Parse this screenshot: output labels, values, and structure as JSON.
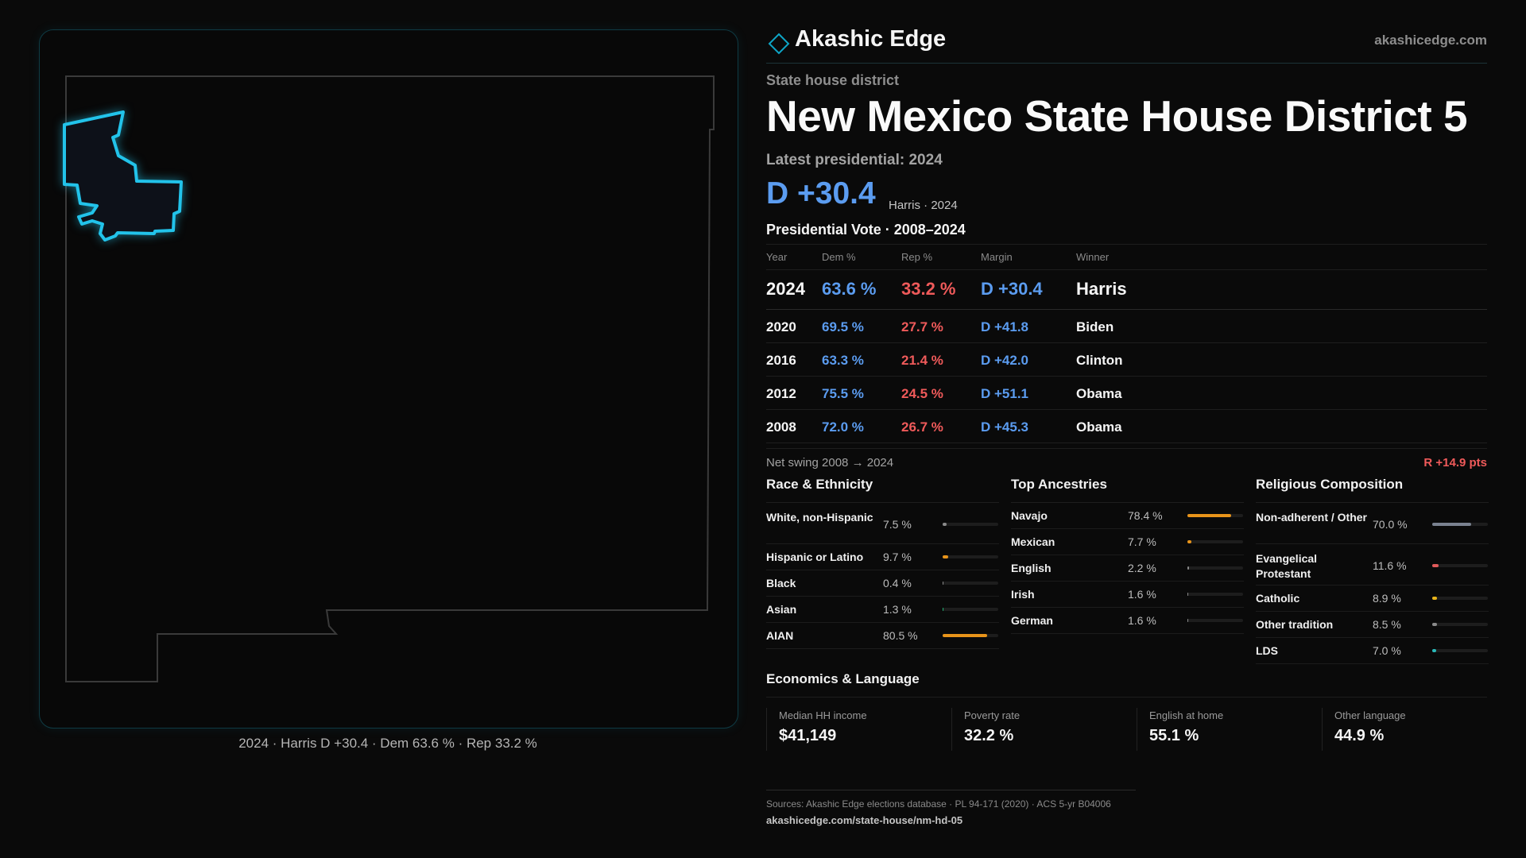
{
  "brand": {
    "name": "Akashic Edge",
    "url": "akashicedge.com",
    "accent": "#0ea5c6"
  },
  "header": {
    "kicker": "State house district",
    "title": "New Mexico State House District 5",
    "latest_label": "Latest presidential: 2024",
    "big_margin": "D +30.4",
    "big_margin_sub": "Harris · 2024"
  },
  "map": {
    "caption": "2024 · Harris D +30.4 · Dem 63.6 % · Rep 33.2 %",
    "district_color": "#22c3ea"
  },
  "presidential": {
    "title": "Presidential Vote · 2008–2024",
    "columns": {
      "year": "Year",
      "dem": "Dem %",
      "rep": "Rep %",
      "margin": "Margin",
      "winner": "Winner"
    },
    "rows": [
      {
        "year": "2024",
        "dem": "63.6 %",
        "rep": "33.2 %",
        "margin": "D +30.4",
        "winner": "Harris"
      },
      {
        "year": "2020",
        "dem": "69.5 %",
        "rep": "27.7 %",
        "margin": "D +41.8",
        "winner": "Biden"
      },
      {
        "year": "2016",
        "dem": "63.3 %",
        "rep": "21.4 %",
        "margin": "D +42.0",
        "winner": "Clinton"
      },
      {
        "year": "2012",
        "dem": "75.5 %",
        "rep": "24.5 %",
        "margin": "D +51.1",
        "winner": "Obama"
      },
      {
        "year": "2008",
        "dem": "72.0 %",
        "rep": "26.7 %",
        "margin": "D +45.3",
        "winner": "Obama"
      }
    ],
    "swing_label": "Net swing 2008 → 2024",
    "swing_value": "R +14.9 pts"
  },
  "race": {
    "title": "Race & Ethnicity",
    "items": [
      {
        "name": "White, non-Hispanic",
        "pct": "7.5 %",
        "value": 7.5,
        "color": "#8a8a8a"
      },
      {
        "name": "Hispanic or Latino",
        "pct": "9.7 %",
        "value": 9.7,
        "color": "#e8941a"
      },
      {
        "name": "Black",
        "pct": "0.4 %",
        "value": 0.4,
        "color": "#8a8a8a"
      },
      {
        "name": "Asian",
        "pct": "1.3 %",
        "value": 1.3,
        "color": "#22b573"
      },
      {
        "name": "AIAN",
        "pct": "80.5 %",
        "value": 80.5,
        "color": "#e8941a"
      }
    ]
  },
  "ancestry": {
    "title": "Top Ancestries",
    "items": [
      {
        "name": "Navajo",
        "pct": "78.4 %",
        "value": 78.4,
        "color": "#e8941a"
      },
      {
        "name": "Mexican",
        "pct": "7.7 %",
        "value": 7.7,
        "color": "#e8941a"
      },
      {
        "name": "English",
        "pct": "2.2 %",
        "value": 2.2,
        "color": "#8a8a8a"
      },
      {
        "name": "Irish",
        "pct": "1.6 %",
        "value": 1.6,
        "color": "#8a8a8a"
      },
      {
        "name": "German",
        "pct": "1.6 %",
        "value": 1.6,
        "color": "#8a8a8a"
      }
    ]
  },
  "religion": {
    "title": "Religious Composition",
    "items": [
      {
        "name": "Non-adherent / Other",
        "pct": "70.0 %",
        "value": 70.0,
        "color": "#7a8290"
      },
      {
        "name": "Evangelical Protestant",
        "pct": "11.6 %",
        "value": 11.6,
        "color": "#e05a5a"
      },
      {
        "name": "Catholic",
        "pct": "8.9 %",
        "value": 8.9,
        "color": "#e8b41a"
      },
      {
        "name": "Other tradition",
        "pct": "8.5 %",
        "value": 8.5,
        "color": "#8a8a8a"
      },
      {
        "name": "LDS",
        "pct": "7.0 %",
        "value": 7.0,
        "color": "#2ab8b8"
      }
    ]
  },
  "economics": {
    "title": "Economics & Language",
    "items": [
      {
        "label": "Median HH income",
        "value": "$41,149"
      },
      {
        "label": "Poverty rate",
        "value": "32.2 %"
      },
      {
        "label": "English at home",
        "value": "55.1 %"
      },
      {
        "label": "Other language",
        "value": "44.9 %"
      }
    ]
  },
  "sources": {
    "text": "Sources: Akashic Edge elections database · PL 94-171 (2020) · ACS 5-yr B04006",
    "link": "akashicedge.com/state-house/nm-hd-05"
  }
}
